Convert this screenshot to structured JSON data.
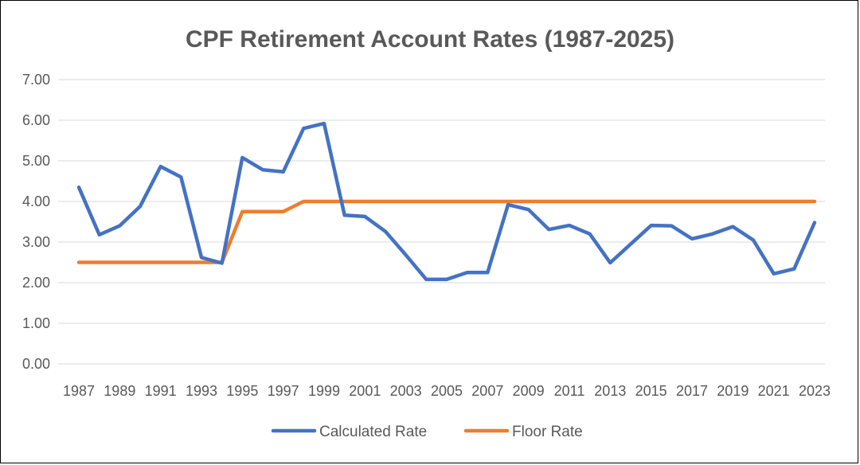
{
  "chart_data": {
    "type": "line",
    "title": "CPF Retirement Account Rates (1987-2025)",
    "xlabel": "",
    "ylabel": "",
    "ylim": [
      0,
      7
    ],
    "yticks": [
      "0.00",
      "1.00",
      "2.00",
      "3.00",
      "4.00",
      "5.00",
      "6.00",
      "7.00"
    ],
    "xticks": [
      "1987",
      "1989",
      "1991",
      "1993",
      "1995",
      "1997",
      "1999",
      "2001",
      "2003",
      "2005",
      "2007",
      "2009",
      "2011",
      "2013",
      "2015",
      "2017",
      "2019",
      "2021",
      "2023"
    ],
    "x": [
      1987,
      1988,
      1989,
      1990,
      1991,
      1992,
      1993,
      1994,
      1995,
      1996,
      1997,
      1998,
      1999,
      2000,
      2001,
      2002,
      2003,
      2004,
      2005,
      2006,
      2007,
      2008,
      2009,
      2010,
      2011,
      2012,
      2013,
      2014,
      2015,
      2016,
      2017,
      2018,
      2019,
      2020,
      2021,
      2022,
      2023
    ],
    "grid": true,
    "legend_position": "bottom",
    "series": [
      {
        "name": "Calculated Rate",
        "color": "#4472C4",
        "values": [
          4.35,
          3.18,
          3.4,
          3.88,
          4.86,
          4.6,
          2.62,
          2.48,
          5.08,
          4.78,
          4.73,
          5.8,
          5.92,
          3.66,
          3.63,
          3.26,
          2.68,
          2.08,
          2.08,
          2.25,
          2.25,
          3.92,
          3.8,
          3.31,
          3.41,
          3.2,
          2.49,
          2.95,
          3.41,
          3.4,
          3.08,
          3.2,
          3.38,
          3.05,
          2.22,
          2.34,
          3.48
        ]
      },
      {
        "name": "Floor Rate",
        "color": "#ED7D31",
        "values": [
          2.5,
          2.5,
          2.5,
          2.5,
          2.5,
          2.5,
          2.5,
          2.5,
          3.75,
          3.75,
          3.75,
          4.0,
          4.0,
          4.0,
          4.0,
          4.0,
          4.0,
          4.0,
          4.0,
          4.0,
          4.0,
          4.0,
          4.0,
          4.0,
          4.0,
          4.0,
          4.0,
          4.0,
          4.0,
          4.0,
          4.0,
          4.0,
          4.0,
          4.0,
          4.0,
          4.0,
          4.0
        ]
      }
    ],
    "gridline_color": "#D9D9D9"
  }
}
